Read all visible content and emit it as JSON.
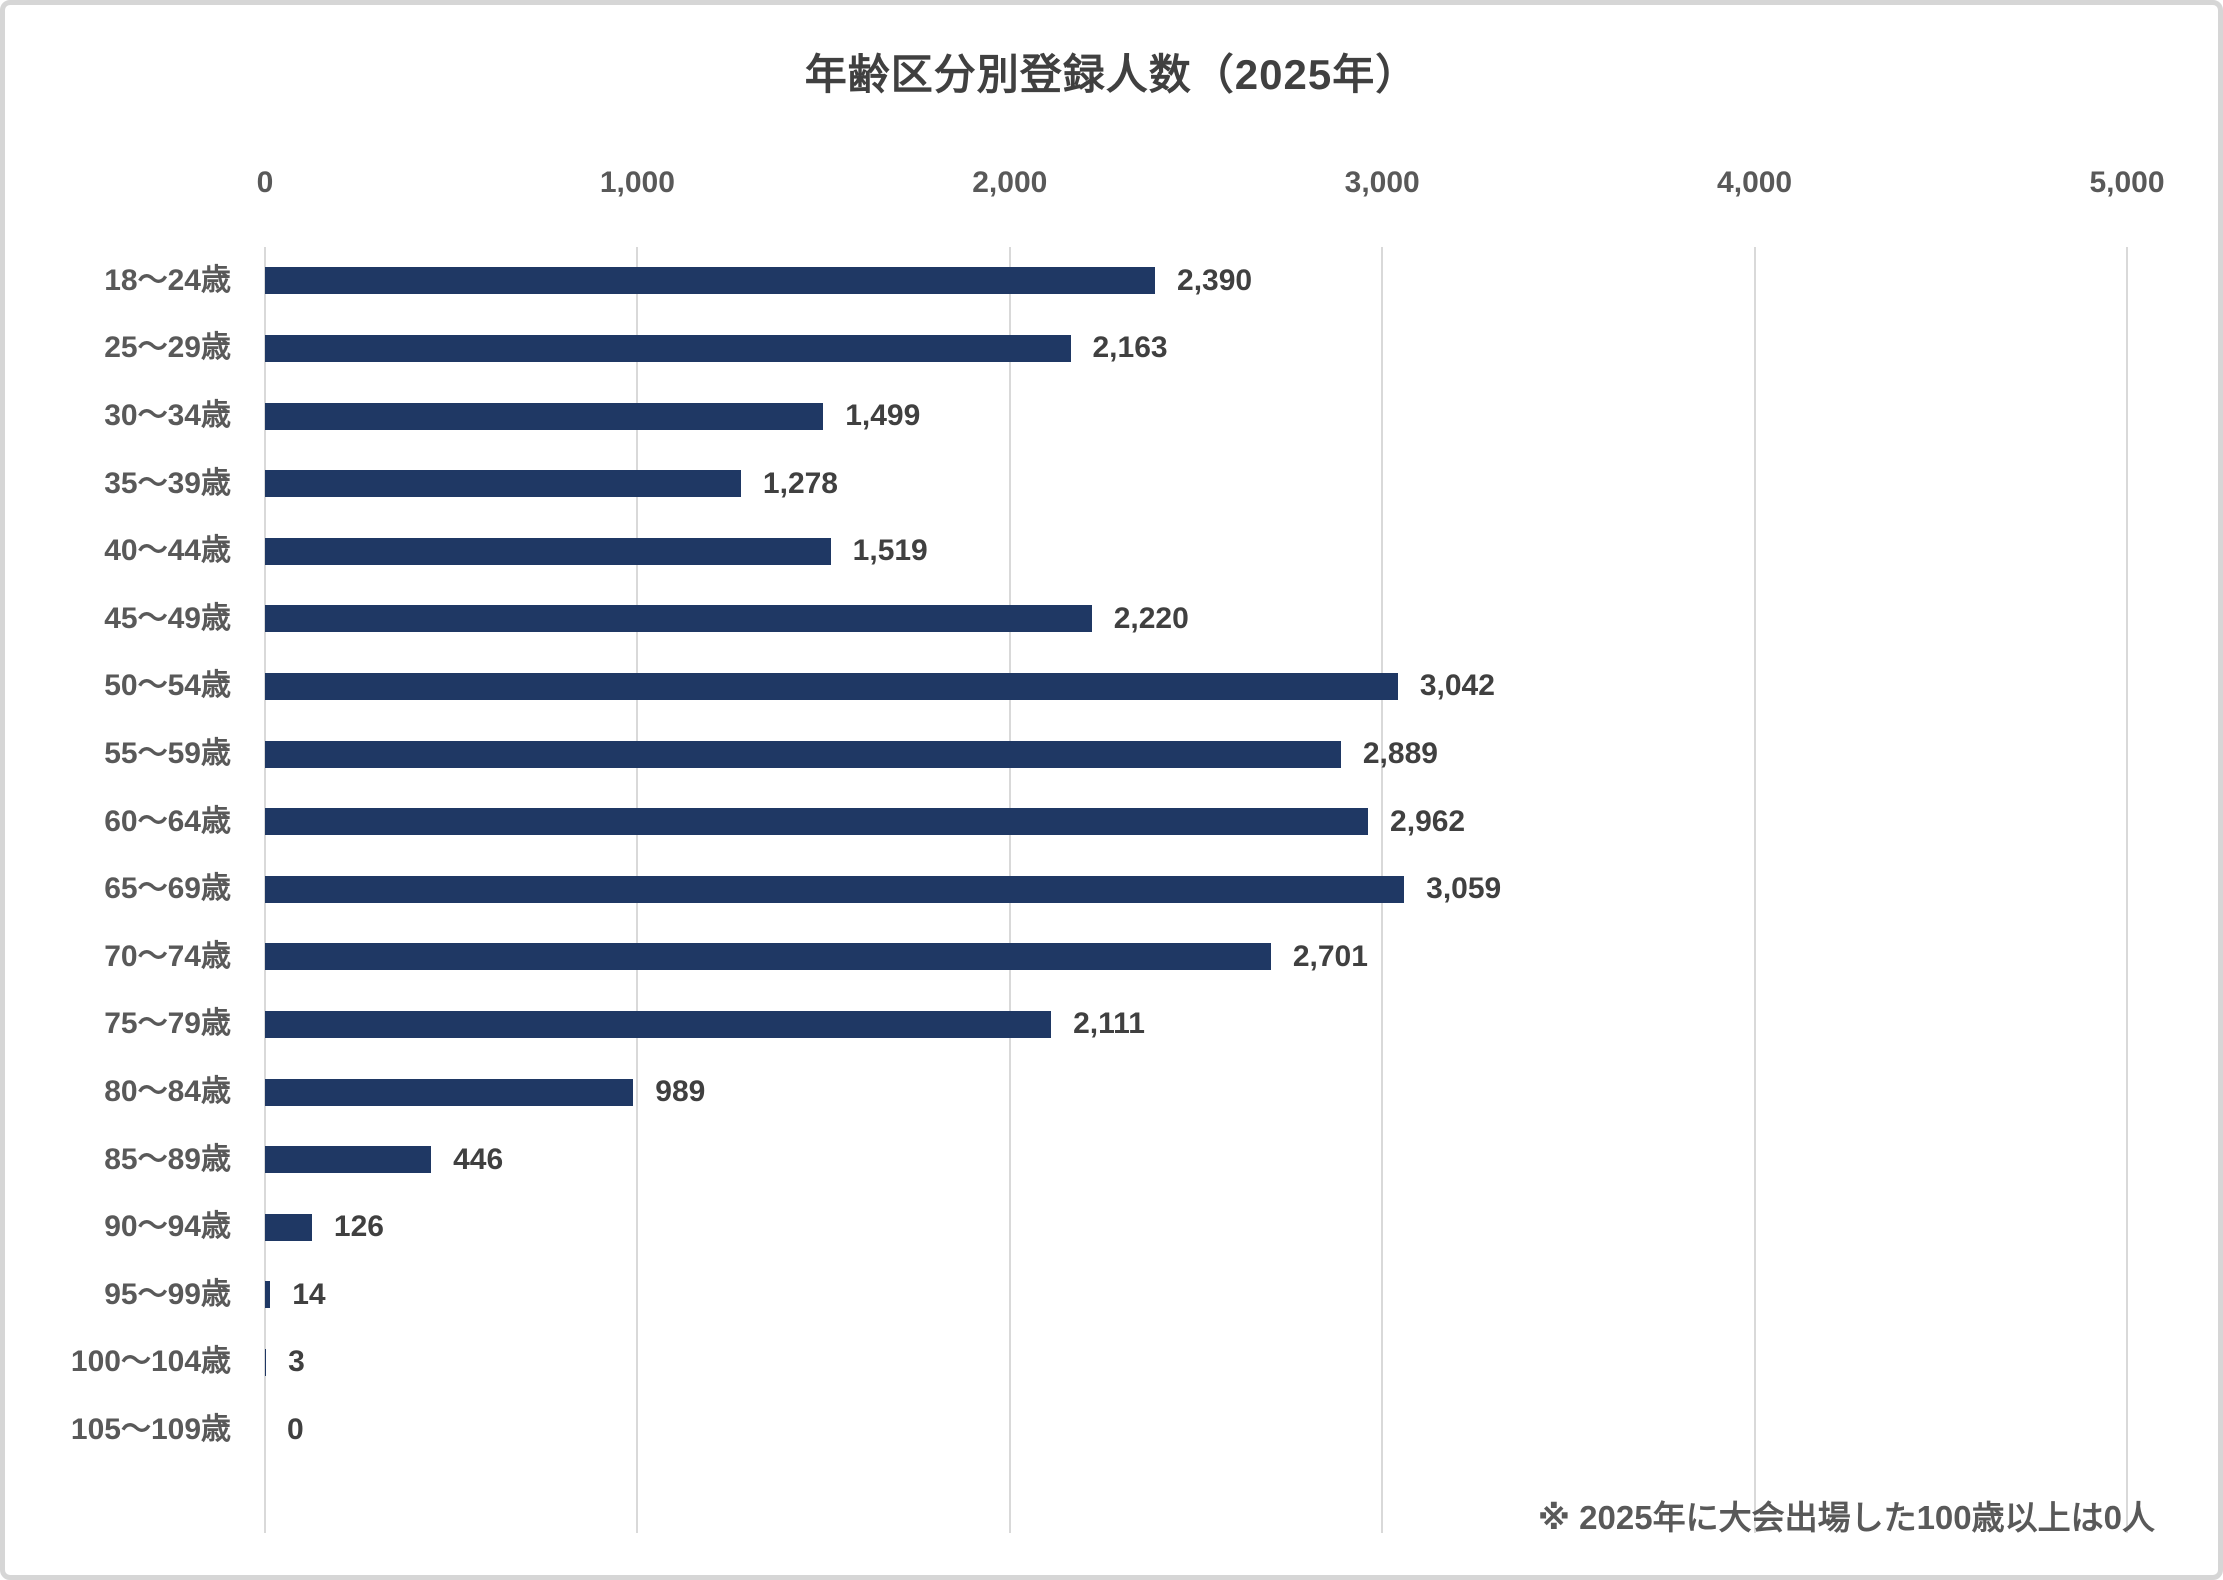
{
  "chart_data": {
    "type": "bar",
    "orientation": "horizontal",
    "title": "年齢区分別登録人数（2025年）",
    "categories": [
      "18〜24歳",
      "25〜29歳",
      "30〜34歳",
      "35〜39歳",
      "40〜44歳",
      "45〜49歳",
      "50〜54歳",
      "55〜59歳",
      "60〜64歳",
      "65〜69歳",
      "70〜74歳",
      "75〜79歳",
      "80〜84歳",
      "85〜89歳",
      "90〜94歳",
      "95〜99歳",
      "100〜104歳",
      "105〜109歳"
    ],
    "values": [
      2390,
      2163,
      1499,
      1278,
      1519,
      2220,
      3042,
      2889,
      2962,
      3059,
      2701,
      2111,
      989,
      446,
      126,
      14,
      3,
      0
    ],
    "value_labels": [
      "2,390",
      "2,163",
      "1,499",
      "1,278",
      "1,519",
      "2,220",
      "3,042",
      "2,889",
      "2,962",
      "3,059",
      "2,701",
      "2,111",
      "989",
      "446",
      "126",
      "14",
      "3",
      "0"
    ],
    "x_tick_values": [
      0,
      1000,
      2000,
      3000,
      4000,
      5000
    ],
    "x_tick_labels": [
      "0",
      "1,000",
      "2,000",
      "3,000",
      "4,000",
      "5,000"
    ],
    "xlim": [
      0,
      5000
    ],
    "grid": "vertical",
    "legend": "none",
    "axis_position": "top",
    "footnote": "※ 2025年に大会出場した100歳以上は0人",
    "colors": {
      "bar": "#1F3864",
      "title": "#404040",
      "category_label": "#595959",
      "tick_label": "#595959",
      "value_label": "#404040",
      "gridline": "#D9D9D9",
      "footnote": "#595959",
      "frame_border": "#D6D6D6",
      "background": "#FFFFFF"
    }
  }
}
